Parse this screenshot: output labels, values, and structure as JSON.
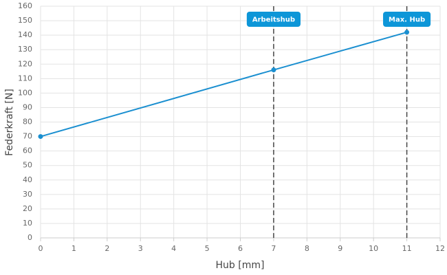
{
  "chart_data": {
    "type": "line",
    "x_label": "Hub [mm]",
    "y_label": "Federkraft [N]",
    "x": [
      0,
      7,
      11
    ],
    "series": [
      {
        "color": "#1a8fd0",
        "values": [
          70,
          116,
          142
        ]
      }
    ],
    "xlim": [
      0,
      12
    ],
    "xticks": [
      0,
      1,
      2,
      3,
      4,
      5,
      6,
      7,
      8,
      9,
      10,
      11,
      12
    ],
    "ylim": [
      0,
      160
    ],
    "yticks": [
      0,
      10,
      20,
      30,
      40,
      50,
      60,
      70,
      80,
      90,
      100,
      110,
      120,
      130,
      140,
      150,
      160
    ],
    "grid": true,
    "annotations": [
      {
        "x": 7,
        "label": "Arbeitshub"
      },
      {
        "x": 11,
        "label": "Max. Hub"
      }
    ],
    "annotation_color": "#0d96d8"
  }
}
